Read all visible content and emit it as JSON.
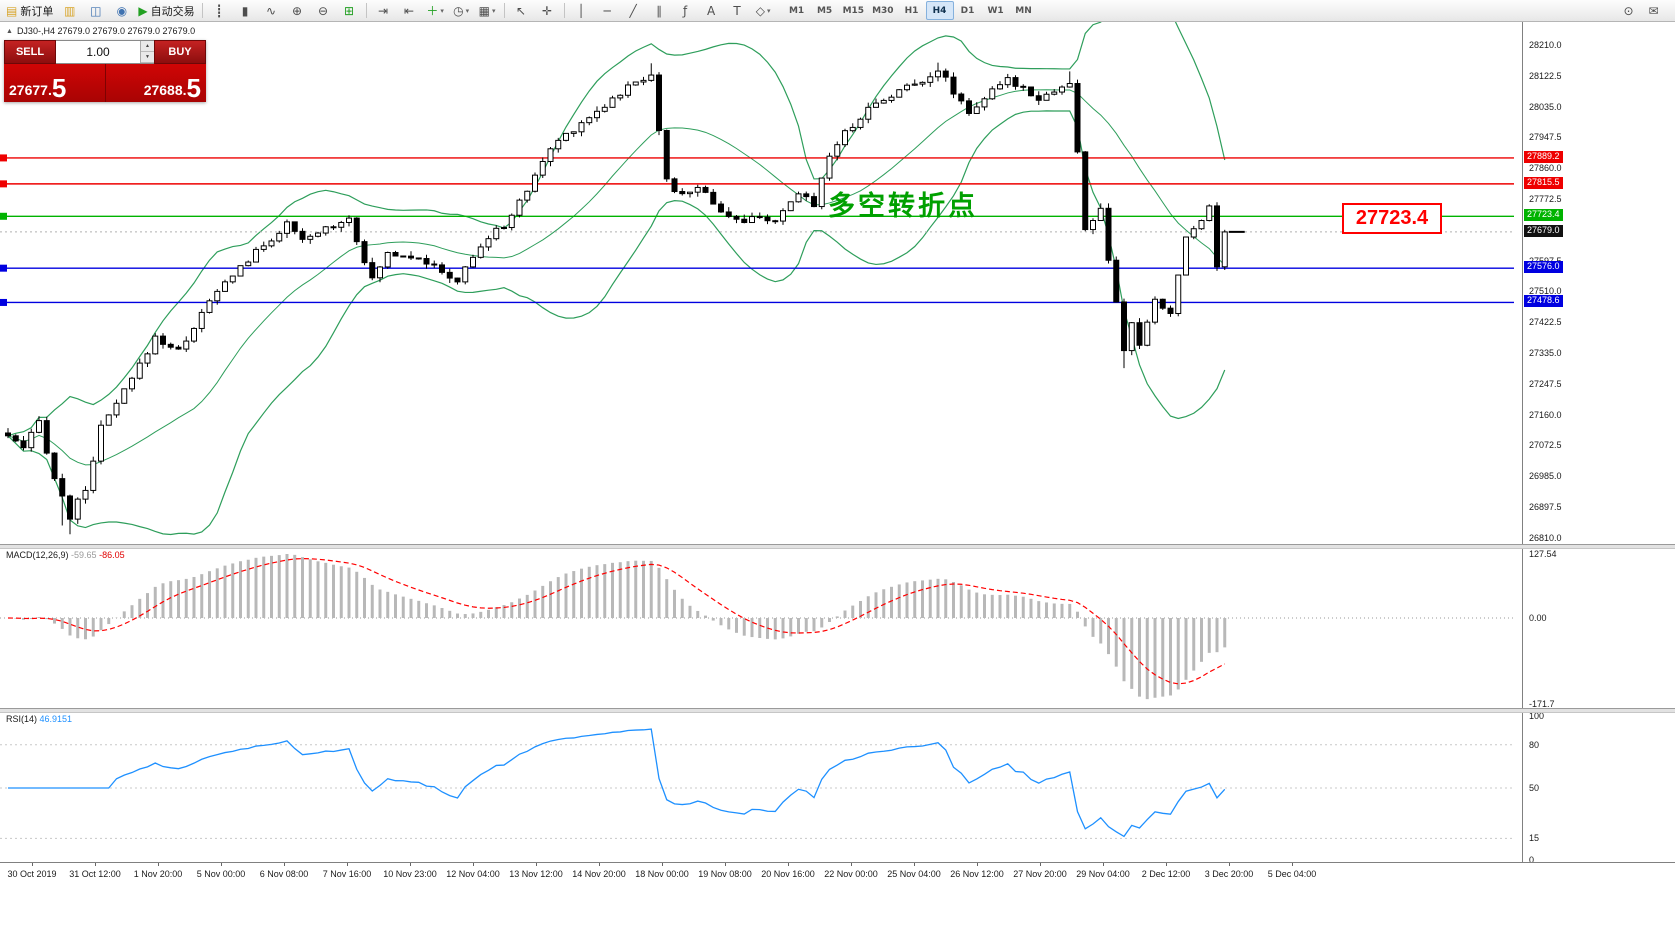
{
  "colors": {
    "band": "#2e9e5b",
    "wick": "#000000",
    "bull": "#ffffff",
    "bear": "#000000",
    "macd_hist": "#b8b8b8",
    "macd_signal": "#ff0000",
    "rsi_line": "#1e90ff",
    "bid_line": "#b0b0b0",
    "current_chip_bg": "#111111"
  },
  "icons": {
    "spin_up": "▲",
    "spin_down": "▼",
    "dropdown": "▾",
    "window_collapse": "▲"
  },
  "toolbar": {
    "items": [
      {
        "name": "new-order-button",
        "glyph": "▤",
        "glyph_color": "#d8a429",
        "label": "新订单"
      },
      {
        "name": "profiles-button",
        "glyph": "▥",
        "glyph_color": "#d8a429"
      },
      {
        "name": "charts-list-button",
        "glyph": "◫",
        "glyph_color": "#3f72b0"
      },
      {
        "name": "market-watch-button",
        "glyph": "◉",
        "glyph_color": "#3f72b0"
      },
      {
        "name": "autotrading-button",
        "glyph": "▶",
        "glyph_color": "#22a022",
        "label": "自动交易"
      },
      {
        "sep": true
      },
      {
        "name": "bar-chart-button",
        "glyph": "┋"
      },
      {
        "name": "candlestick-chart-button",
        "glyph": "▮"
      },
      {
        "name": "line-chart-button",
        "glyph": "∿"
      },
      {
        "name": "zoom-in-button",
        "glyph": "⊕"
      },
      {
        "name": "zoom-out-button",
        "glyph": "⊖"
      },
      {
        "name": "tile-windows-button",
        "glyph": "⊞",
        "glyph_color": "#22a022"
      },
      {
        "sep": true
      },
      {
        "name": "auto-scroll-button",
        "glyph": "⇥"
      },
      {
        "name": "chart-shift-button",
        "glyph": "⇤"
      },
      {
        "name": "indicators-button",
        "glyph": "＋",
        "glyph_color": "#22a022",
        "dropdown": true
      },
      {
        "name": "periods-button",
        "glyph": "◷",
        "dropdown": true
      },
      {
        "name": "templates-button",
        "glyph": "▦",
        "dropdown": true
      },
      {
        "sep": true
      },
      {
        "name": "cursor-button",
        "glyph": "↖"
      },
      {
        "name": "crosshair-button",
        "glyph": "✛"
      },
      {
        "sep": true
      },
      {
        "name": "vertical-line-button",
        "glyph": "│"
      },
      {
        "name": "horizontal-line-button",
        "glyph": "─"
      },
      {
        "name": "trendline-button",
        "glyph": "╱"
      },
      {
        "name": "channel-button",
        "glyph": "∥"
      },
      {
        "name": "fibonacci-button",
        "glyph": "ƒ"
      },
      {
        "name": "text-button",
        "glyph": "A"
      },
      {
        "name": "text-label-button",
        "glyph": "T"
      },
      {
        "name": "shapes-button",
        "glyph": "◇",
        "dropdown": true
      }
    ],
    "right_items": [
      {
        "name": "search-button",
        "glyph": "⊙"
      },
      {
        "name": "chat-button",
        "glyph": "✉"
      }
    ],
    "timeframes": [
      "M1",
      "M5",
      "M15",
      "M30",
      "H1",
      "H4",
      "D1",
      "W1",
      "MN"
    ],
    "active_timeframe": "H4"
  },
  "chart": {
    "header": "DJ30-,H4 27679.0 27679.0 27679.0 27679.0",
    "symbol": "DJ30-",
    "period": "H4",
    "annotation": "多空转折点",
    "price_tag": "27723.4",
    "current_price": "27679.0"
  },
  "trade_panel": {
    "sell_label": "SELL",
    "buy_label": "BUY",
    "volume": "1.00",
    "sell_price": {
      "int": "27677",
      "sep": ".",
      "dec": "5"
    },
    "buy_price": {
      "int": "27688",
      "sep": ".",
      "dec": "5"
    }
  },
  "price_axis": {
    "labels": [
      28210.0,
      28122.5,
      28035.0,
      27947.5,
      27860.0,
      27772.5,
      27685.0,
      27597.5,
      27510.0,
      27422.5,
      27335.0,
      27247.5,
      27160.0,
      27072.5,
      26985.0,
      26897.5,
      26810.0
    ]
  },
  "macd": {
    "title": "MACD(12,26,9)",
    "value_main": "-59.65",
    "value_signal": "-86.05",
    "axis_labels": [
      "127.54",
      "0.00",
      "-171.7"
    ]
  },
  "rsi": {
    "title": "RSI(14)",
    "value": "46.9151",
    "axis_labels": [
      "100",
      "80",
      "50",
      "15",
      "0"
    ],
    "levels": [
      80,
      50,
      15
    ]
  },
  "time_axis": {
    "labels": [
      "30 Oct 2019",
      "31 Oct 12:00",
      "1 Nov 20:00",
      "5 Nov 00:00",
      "6 Nov 08:00",
      "7 Nov 16:00",
      "10 Nov 23:00",
      "12 Nov 04:00",
      "13 Nov 12:00",
      "14 Nov 20:00",
      "18 Nov 00:00",
      "19 Nov 08:00",
      "20 Nov 16:00",
      "22 Nov 00:00",
      "25 Nov 04:00",
      "26 Nov 12:00",
      "27 Nov 20:00",
      "29 Nov 04:00",
      "2 Dec 12:00",
      "3 Dec 20:00",
      "5 Dec 04:00"
    ]
  },
  "chart_data": {
    "type": "candlestick",
    "symbol": "DJ30-",
    "timeframe": "H4",
    "bar_count": 158,
    "current_price": 27679.0,
    "visible_price_range": [
      26790,
      28280
    ],
    "close_waypoints": [
      [
        0,
        27100
      ],
      [
        2,
        27060
      ],
      [
        4,
        27140
      ],
      [
        6,
        26980
      ],
      [
        8,
        26870
      ],
      [
        10,
        26950
      ],
      [
        12,
        27120
      ],
      [
        16,
        27260
      ],
      [
        19,
        27380
      ],
      [
        22,
        27340
      ],
      [
        26,
        27480
      ],
      [
        29,
        27560
      ],
      [
        32,
        27620
      ],
      [
        36,
        27700
      ],
      [
        38,
        27650
      ],
      [
        41,
        27690
      ],
      [
        44,
        27720
      ],
      [
        47,
        27540
      ],
      [
        49,
        27620
      ],
      [
        53,
        27610
      ],
      [
        56,
        27560
      ],
      [
        58,
        27540
      ],
      [
        61,
        27640
      ],
      [
        64,
        27700
      ],
      [
        66,
        27760
      ],
      [
        69,
        27880
      ],
      [
        71,
        27940
      ],
      [
        74,
        27990
      ],
      [
        77,
        28040
      ],
      [
        80,
        28090
      ],
      [
        83,
        28130
      ],
      [
        85,
        27820
      ],
      [
        87,
        27780
      ],
      [
        89,
        27810
      ],
      [
        92,
        27740
      ],
      [
        95,
        27700
      ],
      [
        97,
        27730
      ],
      [
        99,
        27700
      ],
      [
        102,
        27790
      ],
      [
        104,
        27760
      ],
      [
        106,
        27900
      ],
      [
        108,
        27960
      ],
      [
        111,
        28030
      ],
      [
        114,
        28070
      ],
      [
        117,
        28100
      ],
      [
        120,
        28140
      ],
      [
        122,
        28080
      ],
      [
        124,
        28020
      ],
      [
        126,
        28060
      ],
      [
        129,
        28110
      ],
      [
        131,
        28090
      ],
      [
        133,
        28060
      ],
      [
        135,
        28080
      ],
      [
        137,
        28100
      ],
      [
        138,
        27900
      ],
      [
        139,
        27690
      ],
      [
        141,
        27740
      ],
      [
        142,
        27600
      ],
      [
        144,
        27340
      ],
      [
        145,
        27420
      ],
      [
        146,
        27360
      ],
      [
        148,
        27480
      ],
      [
        150,
        27450
      ],
      [
        152,
        27660
      ],
      [
        154,
        27720
      ],
      [
        155,
        27750
      ],
      [
        156,
        27580
      ],
      [
        157,
        27679
      ]
    ],
    "wick_overrides": [
      {
        "i": 7,
        "low": 26845
      },
      {
        "i": 8,
        "low": 26820
      },
      {
        "i": 83,
        "high": 28158
      },
      {
        "i": 120,
        "high": 28160
      },
      {
        "i": 137,
        "high": 28135
      },
      {
        "i": 144,
        "low": 27292
      }
    ],
    "hlines": [
      {
        "price": 27889.2,
        "label": "27889.2",
        "color": "#ee0000"
      },
      {
        "price": 27815.5,
        "label": "27815.5",
        "color": "#ee0000"
      },
      {
        "price": 27723.4,
        "label": "27723.4",
        "color": "#00b300"
      },
      {
        "price": 27576.0,
        "label": "27576.0",
        "color": "#0000e0"
      },
      {
        "price": 27478.6,
        "label": "27478.6",
        "color": "#0000e0"
      }
    ],
    "indicators": [
      {
        "name": "Bollinger Bands",
        "period": 20,
        "deviation": 2
      },
      {
        "name": "MACD",
        "fast": 12,
        "slow": 26,
        "signal": 9,
        "current": [
          -59.65,
          -86.05
        ]
      },
      {
        "name": "RSI",
        "period": 14,
        "current": 46.9151
      }
    ]
  }
}
